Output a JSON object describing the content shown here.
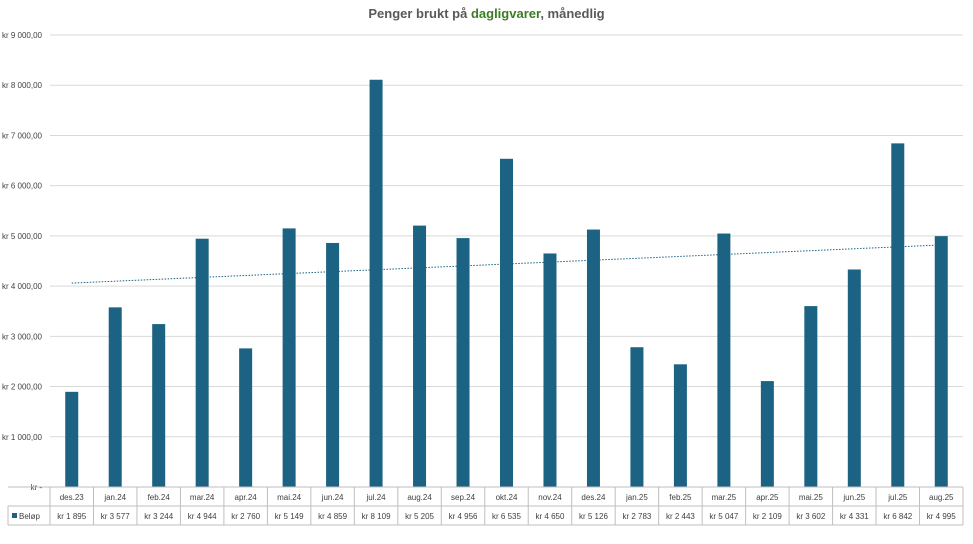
{
  "chart_data": {
    "type": "bar",
    "title_prefix": "Penger brukt på ",
    "title_highlight": "dagligvarer",
    "title_suffix": ", månedlig",
    "ylim": [
      0,
      9000
    ],
    "y_ticks": [
      0,
      1000,
      2000,
      3000,
      4000,
      5000,
      6000,
      7000,
      8000,
      9000
    ],
    "y_tick_labels": [
      "kr -",
      "kr 1 000,00",
      "kr 2 000,00",
      "kr 3 000,00",
      "kr 4 000,00",
      "kr 5 000,00",
      "kr 6 000,00",
      "kr 7 000,00",
      "kr 8 000,00",
      "kr 9 000,00"
    ],
    "categories": [
      "des.23",
      "jan.24",
      "feb.24",
      "mar.24",
      "apr.24",
      "mai.24",
      "jun.24",
      "jul.24",
      "aug.24",
      "sep.24",
      "okt.24",
      "nov.24",
      "des.24",
      "jan.25",
      "feb.25",
      "mar.25",
      "apr.25",
      "mai.25",
      "jun.25",
      "jul.25",
      "aug.25"
    ],
    "series": [
      {
        "name": "Beløp",
        "color": "#1b6283",
        "values": [
          1895,
          3577,
          3244,
          4944,
          2760,
          5149,
          4859,
          8109,
          5205,
          4956,
          6535,
          4650,
          5126,
          2783,
          2443,
          5047,
          2109,
          3602,
          4331,
          6842,
          4995
        ],
        "value_labels": [
          "kr 1 895",
          "kr 3 577",
          "kr 3 244",
          "kr 4 944",
          "kr 2 760",
          "kr 5 149",
          "kr 4 859",
          "kr 8 109",
          "kr 5 205",
          "kr 4 956",
          "kr 6 535",
          "kr 4 650",
          "kr 5 126",
          "kr 2 783",
          "kr 2 443",
          "kr 5 047",
          "kr 2 109",
          "kr 3 602",
          "kr 4 331",
          "kr 6 842",
          "kr 4 995"
        ]
      }
    ],
    "trendline": {
      "type": "linear",
      "start_value": 4060,
      "end_value": 4820,
      "color": "#1b6283"
    },
    "grid": true,
    "data_table": true
  }
}
